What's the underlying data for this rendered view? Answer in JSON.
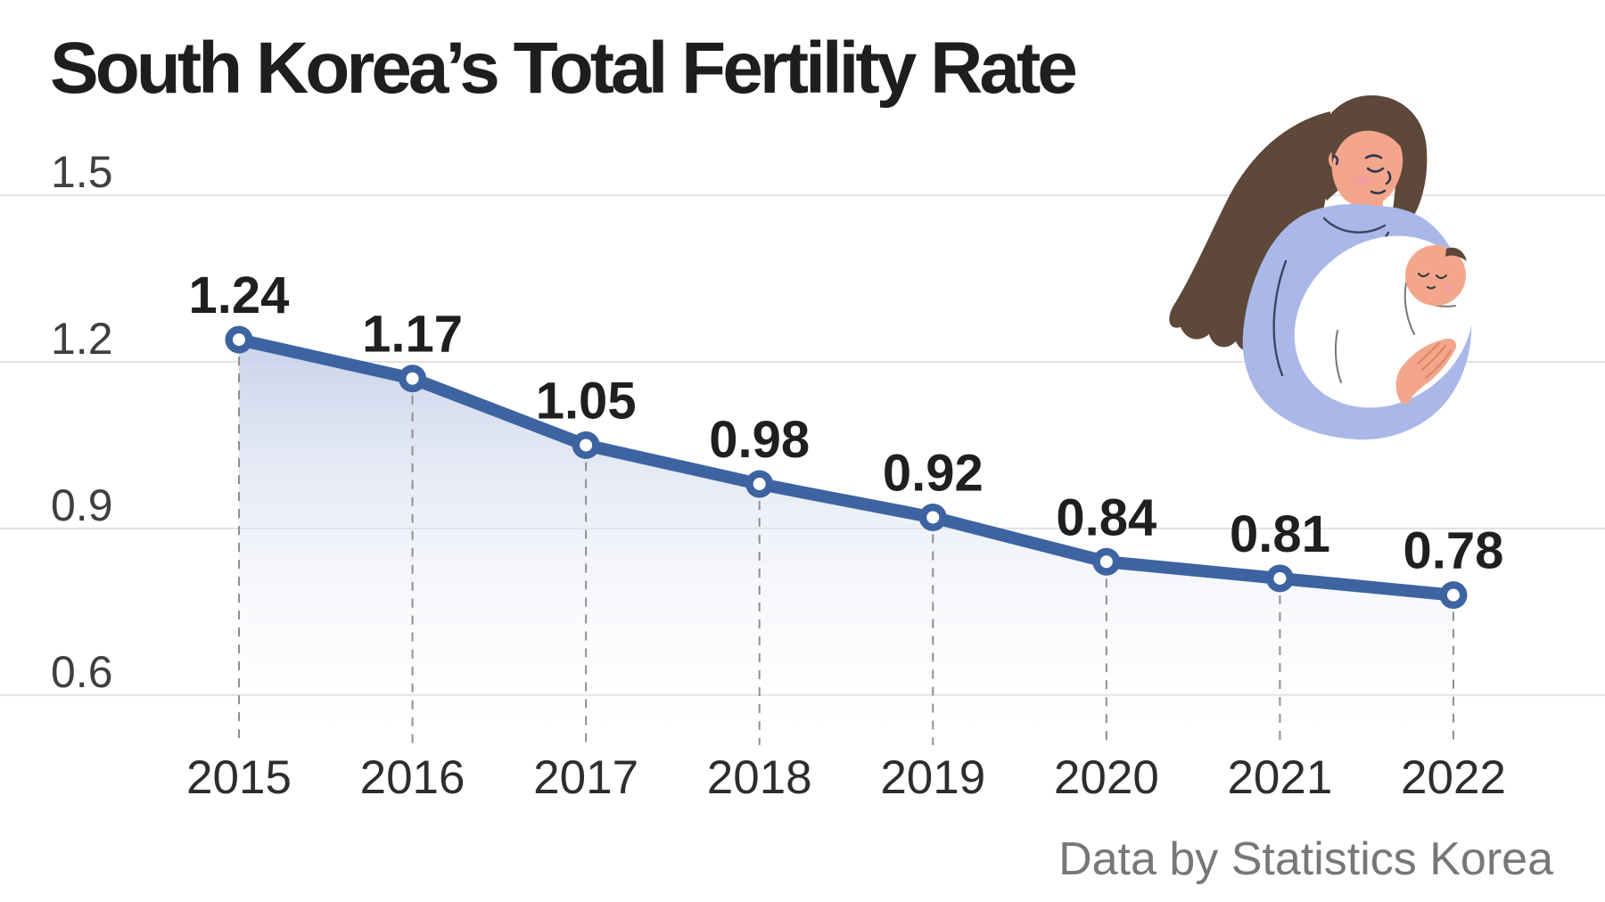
{
  "page": {
    "title": "South Korea’s Total Fertility Rate",
    "attribution": "Data by Statistics Korea"
  },
  "chart_data": {
    "type": "line",
    "title": "South Korea’s Total Fertility Rate",
    "x": [
      "2015",
      "2016",
      "2017",
      "2018",
      "2019",
      "2020",
      "2021",
      "2022"
    ],
    "values": [
      1.24,
      1.17,
      1.05,
      0.98,
      0.92,
      0.84,
      0.81,
      0.78
    ],
    "point_labels": [
      "1.24",
      "1.17",
      "1.05",
      "0.98",
      "0.92",
      "0.84",
      "0.81",
      "0.78"
    ],
    "y_ticks": [
      "1.5",
      "1.2",
      "0.9",
      "0.6"
    ],
    "ylim": [
      0.5,
      1.6
    ],
    "grid": true,
    "legend": false,
    "marker_style": "circle-with-white-center",
    "area_fill": "gradient-fade-down",
    "source": "Data by Statistics Korea",
    "colors": {
      "line": "#3e63a1",
      "marker_center": "#ffffff",
      "area_top": "#c7d1e9",
      "grid": "#e2e2e2",
      "dash": "#8f8f8f",
      "value_label": "#1f1f1f",
      "tick_label": "#3f3f3f",
      "year_label": "#2d2d2d"
    }
  },
  "illustration": {
    "name": "mother-holding-baby",
    "colors": {
      "hair": "#5d4839",
      "skin": "#f4a68c",
      "sweater": "#a9b8e8",
      "swaddle": "#ffffff",
      "blush": "#ef9d9d",
      "detail_line": "#31394f",
      "finger_line": "#d6875f"
    }
  }
}
